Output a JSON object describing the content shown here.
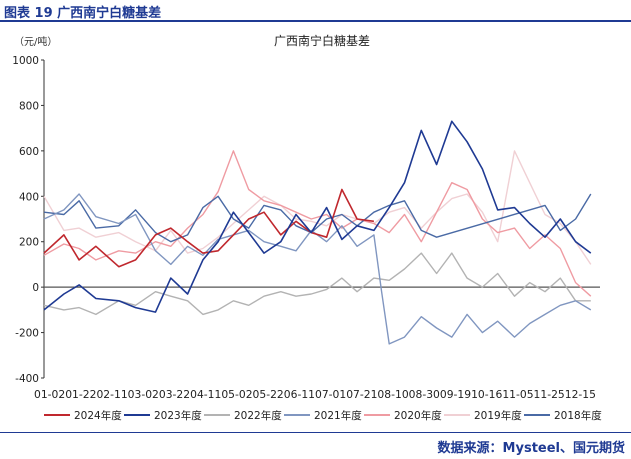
{
  "figure_label": "图表 19  广西南宁白糖基差",
  "source": "数据来源：Mysteel、国元期货",
  "chart_data": {
    "type": "line",
    "title": "广西南宁白糖基差",
    "unit_label": "（元/吨）",
    "xlabel": "",
    "ylabel": "",
    "ylim": [
      -400,
      1000
    ],
    "yticks": [
      -400,
      -200,
      0,
      200,
      400,
      600,
      800,
      1000
    ],
    "x_tick_labels": "01-0201-2202-1103-0203-2204-1105-0205-2206-1107-0107-2108-1008-3009-1910-1611-0511-2512-15",
    "grid": false,
    "legend_position": "bottom",
    "series": [
      {
        "name": "2024年度",
        "color": "#c0282e",
        "x": [
          "01-02",
          "01-15",
          "01-25",
          "02-05",
          "02-20",
          "03-02",
          "03-15",
          "03-25",
          "04-05",
          "04-15",
          "04-25",
          "05-05",
          "05-15",
          "05-25",
          "06-05",
          "06-15",
          "06-25",
          "07-05",
          "07-15",
          "07-25",
          "08-05"
        ],
        "y": [
          150,
          230,
          120,
          180,
          90,
          120,
          230,
          260,
          200,
          150,
          160,
          230,
          300,
          330,
          230,
          290,
          240,
          220,
          430,
          300,
          290
        ]
      },
      {
        "name": "2023年度",
        "color": "#1f3a93",
        "x": [
          "01-02",
          "01-15",
          "01-25",
          "02-05",
          "02-20",
          "03-02",
          "03-15",
          "03-25",
          "04-05",
          "04-15",
          "04-25",
          "05-05",
          "05-15",
          "05-25",
          "06-05",
          "06-15",
          "06-25",
          "07-05",
          "07-15",
          "07-25",
          "08-05",
          "08-15",
          "08-25",
          "09-05",
          "09-15",
          "09-25",
          "10-05",
          "10-15",
          "10-25",
          "11-05",
          "11-15",
          "11-25",
          "12-05",
          "12-15",
          "12-25"
        ],
        "y": [
          -100,
          -30,
          10,
          -50,
          -60,
          -90,
          -110,
          40,
          -30,
          120,
          200,
          330,
          240,
          150,
          200,
          320,
          240,
          350,
          210,
          270,
          250,
          350,
          460,
          690,
          540,
          730,
          640,
          520,
          340,
          350,
          280,
          220,
          300,
          200,
          150
        ]
      },
      {
        "name": "2022年度",
        "color": "#b3b3b3",
        "x": [
          "01-02",
          "01-15",
          "01-25",
          "02-05",
          "02-20",
          "03-02",
          "03-15",
          "03-25",
          "04-05",
          "04-15",
          "04-25",
          "05-05",
          "05-15",
          "05-25",
          "06-05",
          "06-15",
          "06-25",
          "07-05",
          "07-15",
          "07-25",
          "08-05",
          "08-15",
          "08-25",
          "09-05",
          "09-15",
          "09-25",
          "10-05",
          "10-15",
          "10-25",
          "11-05",
          "11-15",
          "11-25",
          "12-05",
          "12-15",
          "12-25"
        ],
        "y": [
          -80,
          -100,
          -90,
          -120,
          -60,
          -80,
          -20,
          -40,
          -60,
          -120,
          -100,
          -60,
          -80,
          -40,
          -20,
          -40,
          -30,
          -10,
          40,
          -20,
          40,
          30,
          80,
          150,
          60,
          150,
          40,
          0,
          60,
          -40,
          20,
          -20,
          40,
          -60,
          -60
        ]
      },
      {
        "name": "2021年度",
        "color": "#8096c0",
        "x": [
          "01-02",
          "01-15",
          "01-25",
          "02-05",
          "02-20",
          "03-02",
          "03-15",
          "03-25",
          "04-05",
          "04-15",
          "04-25",
          "05-05",
          "05-15",
          "05-25",
          "06-05",
          "06-15",
          "06-25",
          "07-05",
          "07-15",
          "07-25",
          "08-05",
          "08-10",
          "08-15",
          "08-25",
          "09-05",
          "09-15",
          "09-25",
          "10-05",
          "10-15",
          "10-25",
          "11-05",
          "11-15",
          "11-25",
          "12-05",
          "12-15",
          "12-25"
        ],
        "y": [
          300,
          340,
          410,
          310,
          280,
          320,
          160,
          100,
          180,
          140,
          210,
          230,
          250,
          200,
          180,
          160,
          250,
          200,
          270,
          180,
          230,
          -20,
          -250,
          -220,
          -130,
          -180,
          -220,
          -120,
          -200,
          -150,
          -220,
          -160,
          -120,
          -80,
          -60,
          -100
        ]
      },
      {
        "name": "2020年度",
        "color": "#ef9ba2",
        "x": [
          "01-02",
          "01-15",
          "01-25",
          "02-05",
          "02-20",
          "03-02",
          "03-15",
          "03-25",
          "04-05",
          "04-15",
          "04-25",
          "05-05",
          "05-15",
          "05-25",
          "06-05",
          "06-15",
          "06-25",
          "07-05",
          "07-15",
          "07-25",
          "08-05",
          "08-15",
          "08-25",
          "09-05",
          "09-15",
          "09-25",
          "10-05",
          "10-15",
          "10-25",
          "11-05",
          "11-15",
          "11-25",
          "12-05",
          "12-15",
          "12-25"
        ],
        "y": [
          140,
          190,
          170,
          120,
          160,
          150,
          200,
          180,
          260,
          320,
          420,
          600,
          430,
          380,
          360,
          330,
          300,
          320,
          260,
          300,
          280,
          240,
          320,
          200,
          330,
          460,
          430,
          300,
          240,
          260,
          170,
          230,
          170,
          20,
          -40
        ]
      },
      {
        "name": "2019年度",
        "color": "#f0d0d4",
        "x": [
          "01-02",
          "01-15",
          "01-25",
          "02-05",
          "02-20",
          "03-02",
          "03-15",
          "03-25",
          "04-05",
          "04-15",
          "04-25",
          "05-05",
          "05-15",
          "05-25",
          "06-05",
          "06-15",
          "06-25",
          "07-05",
          "07-15",
          "07-25",
          "08-05",
          "08-15",
          "08-25",
          "09-05",
          "09-15",
          "09-25",
          "10-05",
          "10-15",
          "10-25",
          "11-05",
          "11-15",
          "11-25",
          "12-05",
          "12-15",
          "12-25"
        ],
        "y": [
          400,
          250,
          260,
          220,
          240,
          200,
          160,
          250,
          150,
          170,
          220,
          280,
          340,
          400,
          360,
          300,
          290,
          270,
          320,
          300,
          280,
          330,
          350,
          260,
          330,
          390,
          410,
          330,
          200,
          600,
          460,
          320,
          280,
          200,
          100
        ]
      },
      {
        "name": "2018年度",
        "color": "#4a6aa5",
        "x": [
          "01-02",
          "01-15",
          "01-25",
          "02-05",
          "02-20",
          "03-02",
          "03-15",
          "03-25",
          "04-05",
          "04-15",
          "04-25",
          "05-05",
          "05-15",
          "05-25",
          "06-05",
          "06-15",
          "06-25",
          "07-05",
          "07-15",
          "07-25",
          "08-05",
          "08-15",
          "08-25",
          "09-05",
          "09-15",
          "11-25",
          "12-05",
          "12-15",
          "12-25"
        ],
        "y": [
          330,
          320,
          380,
          260,
          270,
          340,
          240,
          200,
          230,
          350,
          400,
          300,
          260,
          360,
          340,
          270,
          240,
          300,
          320,
          270,
          330,
          360,
          380,
          250,
          220,
          360,
          250,
          300,
          410
        ]
      }
    ]
  }
}
